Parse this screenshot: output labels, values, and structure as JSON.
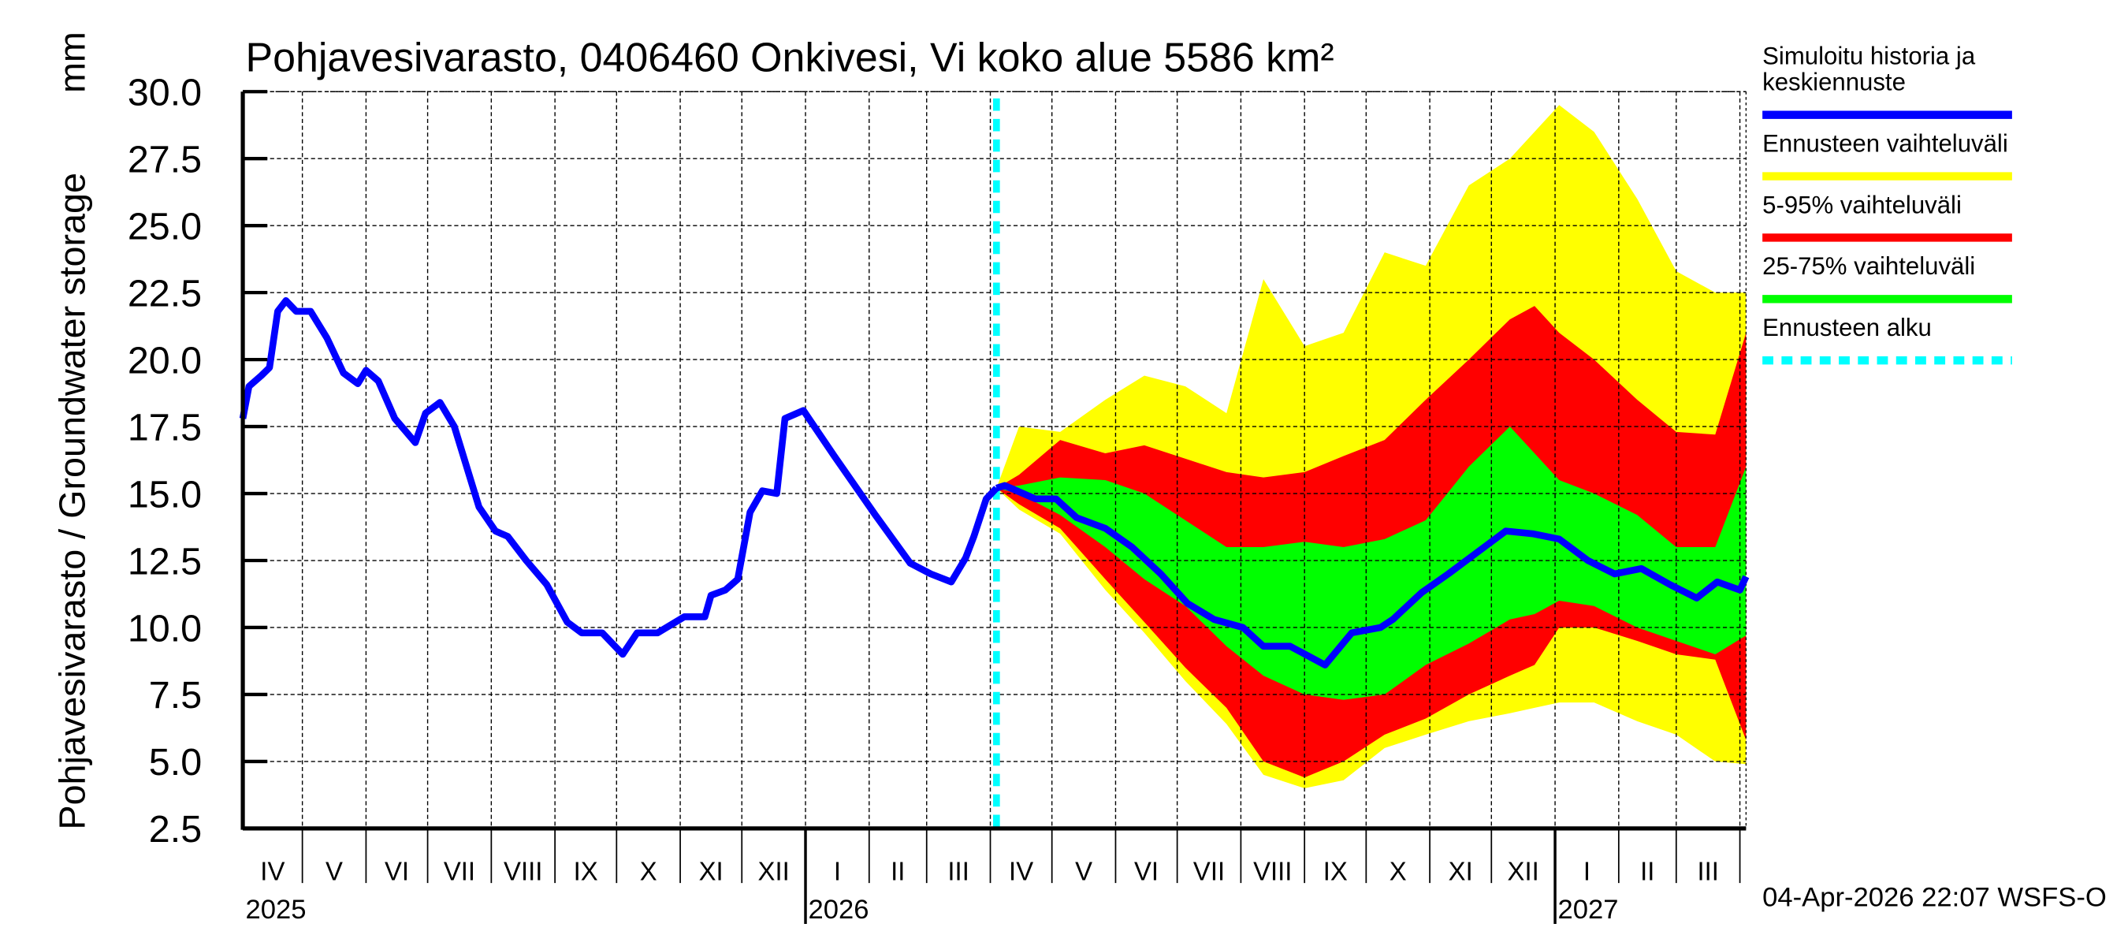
{
  "chart_data": {
    "type": "area",
    "title": "Pohjavesivarasto, 0406460 Onkivesi, Vi koko alue 5586 km²",
    "ylabel": "Pohjavesivarasto / Groundwater storage",
    "yunit": "mm",
    "ylim": [
      2.5,
      30.0
    ],
    "yticks": [
      "2.5",
      "5.0",
      "7.5",
      "10.0",
      "12.5",
      "15.0",
      "17.5",
      "20.0",
      "22.5",
      "25.0",
      "27.5",
      "30.0"
    ],
    "xlim": [
      "2025-04-02",
      "2027-04-04"
    ],
    "month_labels": [
      "I",
      "II",
      "III",
      "IV",
      "V",
      "VI",
      "VII",
      "VIII",
      "IX",
      "X",
      "XI",
      "XII"
    ],
    "year_labels": [
      "2025",
      "2026",
      "2027"
    ],
    "grid": true,
    "legend_placement": "right",
    "forecast_start": "2026-04-04",
    "colors": {
      "history": "#0000ff",
      "range": "#ffff00",
      "p5_95": "#ff0000",
      "p25_75": "#00ff00",
      "forecast_start": "#00ffff"
    },
    "legend": [
      {
        "label_lines": [
          "Simuloitu historia ja",
          "keskiennuste"
        ],
        "color": "#0000ff",
        "style": "solid"
      },
      {
        "label_lines": [
          "Ennusteen vaihteluväli"
        ],
        "color": "#ffff00",
        "style": "solid"
      },
      {
        "label_lines": [
          "5-95% vaihteluväli"
        ],
        "color": "#ff0000",
        "style": "solid"
      },
      {
        "label_lines": [
          "25-75% vaihteluväli"
        ],
        "color": "#00ff00",
        "style": "solid"
      },
      {
        "label_lines": [
          "Ennusteen alku"
        ],
        "color": "#00ffff",
        "style": "dashed"
      }
    ],
    "history": [
      [
        "2025-04-02",
        17.8
      ],
      [
        "2025-04-05",
        19.0
      ],
      [
        "2025-04-11",
        19.4
      ],
      [
        "2025-04-15",
        19.7
      ],
      [
        "2025-04-19",
        21.8
      ],
      [
        "2025-04-23",
        22.2
      ],
      [
        "2025-04-28",
        21.8
      ],
      [
        "2025-05-05",
        21.8
      ],
      [
        "2025-05-13",
        20.8
      ],
      [
        "2025-05-21",
        19.5
      ],
      [
        "2025-05-28",
        19.1
      ],
      [
        "2025-06-01",
        19.6
      ],
      [
        "2025-06-07",
        19.2
      ],
      [
        "2025-06-15",
        17.8
      ],
      [
        "2025-06-25",
        16.9
      ],
      [
        "2025-06-30",
        18.0
      ],
      [
        "2025-07-07",
        18.4
      ],
      [
        "2025-07-14",
        17.5
      ],
      [
        "2025-07-26",
        14.5
      ],
      [
        "2025-08-03",
        13.6
      ],
      [
        "2025-08-09",
        13.4
      ],
      [
        "2025-08-18",
        12.5
      ],
      [
        "2025-08-28",
        11.6
      ],
      [
        "2025-09-07",
        10.2
      ],
      [
        "2025-09-14",
        9.8
      ],
      [
        "2025-09-24",
        9.8
      ],
      [
        "2025-10-04",
        9.0
      ],
      [
        "2025-10-11",
        9.8
      ],
      [
        "2025-10-21",
        9.8
      ],
      [
        "2025-11-03",
        10.4
      ],
      [
        "2025-11-13",
        10.4
      ],
      [
        "2025-11-16",
        11.2
      ],
      [
        "2025-11-23",
        11.4
      ],
      [
        "2025-11-29",
        11.8
      ],
      [
        "2025-12-05",
        14.3
      ],
      [
        "2025-12-11",
        15.1
      ],
      [
        "2025-12-18",
        15.0
      ],
      [
        "2025-12-22",
        17.8
      ],
      [
        "2025-12-31",
        18.1
      ],
      [
        "2026-01-15",
        16.4
      ],
      [
        "2026-02-04",
        14.2
      ],
      [
        "2026-02-21",
        12.4
      ],
      [
        "2026-03-03",
        12.0
      ],
      [
        "2026-03-13",
        11.7
      ],
      [
        "2026-03-20",
        12.6
      ],
      [
        "2026-03-24",
        13.4
      ],
      [
        "2026-03-30",
        14.8
      ],
      [
        "2026-04-04",
        15.2
      ]
    ],
    "median": [
      [
        "2026-04-04",
        15.2
      ],
      [
        "2026-04-08",
        15.3
      ],
      [
        "2026-04-23",
        14.8
      ],
      [
        "2026-05-03",
        14.8
      ],
      [
        "2026-05-13",
        14.1
      ],
      [
        "2026-05-27",
        13.7
      ],
      [
        "2026-06-09",
        13.0
      ],
      [
        "2026-06-23",
        12.0
      ],
      [
        "2026-07-06",
        10.9
      ],
      [
        "2026-07-19",
        10.3
      ],
      [
        "2026-08-02",
        10.0
      ],
      [
        "2026-08-12",
        9.3
      ],
      [
        "2026-08-25",
        9.3
      ],
      [
        "2026-09-11",
        8.6
      ],
      [
        "2026-09-24",
        9.8
      ],
      [
        "2026-10-08",
        10.0
      ],
      [
        "2026-10-14",
        10.3
      ],
      [
        "2026-10-28",
        11.3
      ],
      [
        "2026-11-10",
        12.0
      ],
      [
        "2026-11-24",
        12.8
      ],
      [
        "2026-12-08",
        13.6
      ],
      [
        "2026-12-21",
        13.5
      ],
      [
        "2027-01-03",
        13.3
      ],
      [
        "2027-01-17",
        12.5
      ],
      [
        "2027-01-30",
        12.0
      ],
      [
        "2027-02-12",
        12.2
      ],
      [
        "2027-02-26",
        11.6
      ],
      [
        "2027-03-11",
        11.1
      ],
      [
        "2027-03-21",
        11.7
      ],
      [
        "2027-04-01",
        11.4
      ],
      [
        "2027-04-04",
        11.9
      ]
    ],
    "bands": {
      "columns": [
        "date",
        "min",
        "p5",
        "p25",
        "p75",
        "p95",
        "max"
      ],
      "rows": [
        [
          "2026-04-04",
          15.2,
          15.2,
          15.2,
          15.2,
          15.2,
          15.2
        ],
        [
          "2026-04-15",
          14.4,
          14.6,
          15.0,
          15.3,
          15.7,
          17.5
        ],
        [
          "2026-05-05",
          13.5,
          13.7,
          14.2,
          15.6,
          17.0,
          17.3
        ],
        [
          "2026-05-27",
          11.4,
          11.8,
          13.0,
          15.5,
          16.5,
          18.5
        ],
        [
          "2026-06-15",
          9.8,
          10.2,
          11.8,
          15.0,
          16.8,
          19.4
        ],
        [
          "2026-07-05",
          8.0,
          8.5,
          10.8,
          14.0,
          16.3,
          19.0
        ],
        [
          "2026-07-25",
          6.4,
          7.0,
          9.3,
          13.0,
          15.8,
          18.0
        ],
        [
          "2026-08-12",
          4.5,
          5.0,
          8.2,
          13.0,
          15.6,
          23.0
        ],
        [
          "2026-09-01",
          4.0,
          4.4,
          7.5,
          13.2,
          15.8,
          20.5
        ],
        [
          "2026-09-20",
          4.3,
          5.0,
          7.3,
          13.0,
          16.4,
          21.0
        ],
        [
          "2026-10-10",
          5.5,
          6.0,
          7.5,
          13.3,
          17.0,
          24.0
        ],
        [
          "2026-10-30",
          6.0,
          6.6,
          8.6,
          14.0,
          18.5,
          23.5
        ],
        [
          "2026-11-20",
          6.5,
          7.5,
          9.4,
          16.0,
          20.0,
          26.5
        ],
        [
          "2026-12-10",
          6.8,
          8.2,
          10.3,
          17.5,
          21.5,
          27.5
        ],
        [
          "2026-12-22",
          7.0,
          8.6,
          10.5,
          16.5,
          22.0,
          28.5
        ],
        [
          "2027-01-03",
          7.2,
          10.0,
          11.0,
          15.5,
          21.0,
          29.5
        ],
        [
          "2027-01-20",
          7.2,
          10.0,
          10.8,
          15.0,
          20.0,
          28.5
        ],
        [
          "2027-02-10",
          6.5,
          9.5,
          10.0,
          14.2,
          18.5,
          26.0
        ],
        [
          "2027-03-01",
          6.0,
          9.0,
          9.5,
          13.0,
          17.3,
          23.3
        ],
        [
          "2027-03-20",
          5.0,
          8.8,
          9.0,
          13.0,
          17.2,
          22.5
        ],
        [
          "2027-04-04",
          4.9,
          5.8,
          9.7,
          16.0,
          21.0,
          22.5
        ]
      ]
    }
  },
  "footer": "04-Apr-2026 22:07 WSFS-O"
}
